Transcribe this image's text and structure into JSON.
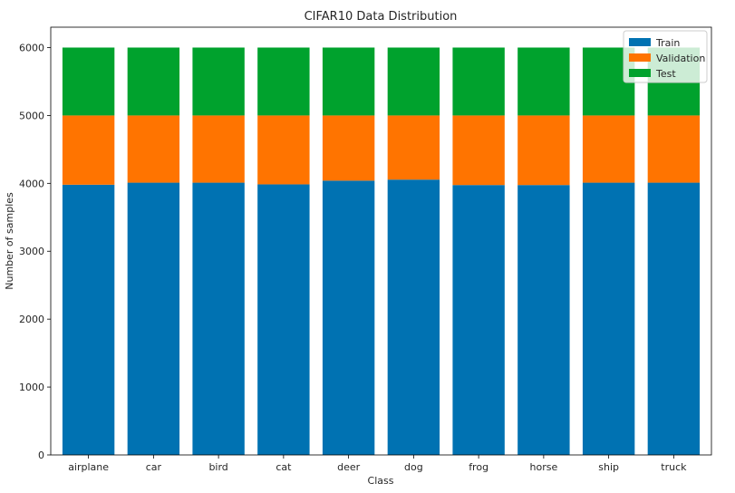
{
  "chart_data": {
    "type": "bar",
    "stacked": true,
    "title": "CIFAR10 Data Distribution",
    "xlabel": "Class",
    "ylabel": "Number of samples",
    "categories": [
      "airplane",
      "car",
      "bird",
      "cat",
      "deer",
      "dog",
      "frog",
      "horse",
      "ship",
      "truck"
    ],
    "series": [
      {
        "name": "Train",
        "color": "#0072b2",
        "values": [
          3980,
          4010,
          4010,
          3985,
          4040,
          4055,
          3975,
          3975,
          4010,
          4010
        ]
      },
      {
        "name": "Validation",
        "color": "#ff7400",
        "values": [
          1020,
          990,
          990,
          1015,
          960,
          945,
          1025,
          1025,
          990,
          990
        ]
      },
      {
        "name": "Test",
        "color": "#00a22d",
        "values": [
          1000,
          1000,
          1000,
          1000,
          1000,
          1000,
          1000,
          1000,
          1000,
          1000
        ]
      }
    ],
    "ylim": [
      0,
      6300
    ],
    "yticks": [
      0,
      1000,
      2000,
      3000,
      4000,
      5000,
      6000
    ],
    "grid": false,
    "legend": "top-right"
  }
}
